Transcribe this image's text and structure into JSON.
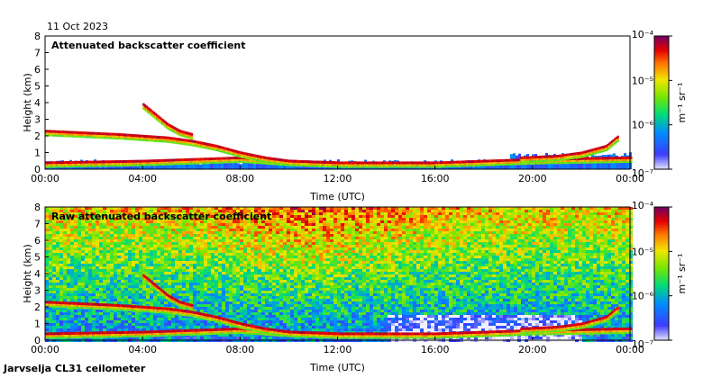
{
  "page": {
    "date": "11 Oct 2023",
    "footer": "Jarvselja CL31 ceilometer"
  },
  "chart_data": [
    {
      "type": "heatmap",
      "title": "Attenuated backscatter coefficient",
      "xlabel": "Time (UTC)",
      "ylabel": "Height (km)",
      "xlim": [
        0,
        24
      ],
      "ylim": [
        0,
        8
      ],
      "x_ticks": [
        "00:00",
        "04:00",
        "08:00",
        "12:00",
        "16:00",
        "20:00",
        "00:00"
      ],
      "y_ticks": [
        "0",
        "1",
        "2",
        "3",
        "4",
        "5",
        "6",
        "7",
        "8"
      ],
      "colorbar": {
        "label": "m⁻¹ sr⁻¹",
        "scale": "log",
        "range": [
          1e-07,
          0.0001
        ],
        "ticks": [
          "10⁻⁷",
          "10⁻⁶",
          "10⁻⁵",
          "10⁻⁴"
        ]
      },
      "noise": false,
      "layers": [
        {
          "name": "boundary-layer",
          "points": [
            [
              0,
              0.3
            ],
            [
              2,
              0.35
            ],
            [
              4,
              0.4
            ],
            [
              6,
              0.5
            ],
            [
              8,
              0.6
            ],
            [
              10,
              0.4
            ],
            [
              12,
              0.3
            ],
            [
              16,
              0.3
            ],
            [
              20,
              0.5
            ],
            [
              24,
              0.6
            ]
          ]
        },
        {
          "name": "residual-layer",
          "points": [
            [
              0,
              2.2
            ],
            [
              1.5,
              2.1
            ],
            [
              3,
              2.0
            ],
            [
              4,
              1.9
            ],
            [
              5,
              1.8
            ],
            [
              6,
              1.6
            ],
            [
              7,
              1.3
            ],
            [
              8,
              0.9
            ],
            [
              9,
              0.6
            ],
            [
              10,
              0.4
            ],
            [
              11,
              0.35
            ],
            [
              12,
              0.3
            ]
          ]
        },
        {
          "name": "evening-layer",
          "points": [
            [
              19.5,
              0.6
            ],
            [
              21,
              0.7
            ],
            [
              22,
              0.9
            ],
            [
              23,
              1.3
            ],
            [
              23.5,
              1.9
            ]
          ]
        },
        {
          "name": "morning-plumes",
          "points": [
            [
              4,
              3.8
            ],
            [
              4.5,
              3.2
            ],
            [
              5,
              2.6
            ],
            [
              5.5,
              2.2
            ],
            [
              6,
              2.0
            ]
          ]
        }
      ]
    },
    {
      "type": "heatmap",
      "title": "Raw attenuated backscatter coefficient",
      "xlabel": "Time (UTC)",
      "ylabel": "Height (km)",
      "xlim": [
        0,
        24
      ],
      "ylim": [
        0,
        8
      ],
      "x_ticks": [
        "00:00",
        "04:00",
        "08:00",
        "12:00",
        "16:00",
        "20:00",
        "00:00"
      ],
      "y_ticks": [
        "0",
        "1",
        "2",
        "3",
        "4",
        "5",
        "6",
        "7",
        "8"
      ],
      "colorbar": {
        "label": "m⁻¹ sr⁻¹",
        "scale": "log",
        "range": [
          1e-07,
          0.0001
        ],
        "ticks": [
          "10⁻⁷",
          "10⁻⁶",
          "10⁻⁵",
          "10⁻⁴"
        ]
      },
      "noise": true,
      "layers": [
        {
          "name": "boundary-layer",
          "points": [
            [
              0,
              0.3
            ],
            [
              2,
              0.35
            ],
            [
              4,
              0.4
            ],
            [
              6,
              0.5
            ],
            [
              8,
              0.6
            ],
            [
              10,
              0.4
            ],
            [
              12,
              0.3
            ],
            [
              16,
              0.3
            ],
            [
              20,
              0.5
            ],
            [
              24,
              0.6
            ]
          ]
        },
        {
          "name": "residual-layer",
          "points": [
            [
              0,
              2.2
            ],
            [
              1.5,
              2.1
            ],
            [
              3,
              2.0
            ],
            [
              4,
              1.9
            ],
            [
              5,
              1.8
            ],
            [
              6,
              1.6
            ],
            [
              7,
              1.3
            ],
            [
              8,
              0.9
            ],
            [
              9,
              0.6
            ],
            [
              10,
              0.4
            ],
            [
              11,
              0.35
            ],
            [
              12,
              0.3
            ]
          ]
        },
        {
          "name": "evening-layer",
          "points": [
            [
              19.5,
              0.6
            ],
            [
              21,
              0.7
            ],
            [
              22,
              0.9
            ],
            [
              23,
              1.3
            ],
            [
              23.5,
              1.9
            ]
          ]
        },
        {
          "name": "morning-plumes",
          "points": [
            [
              4,
              3.8
            ],
            [
              4.5,
              3.2
            ],
            [
              5,
              2.6
            ],
            [
              5.5,
              2.2
            ],
            [
              6,
              2.0
            ]
          ]
        }
      ]
    }
  ]
}
